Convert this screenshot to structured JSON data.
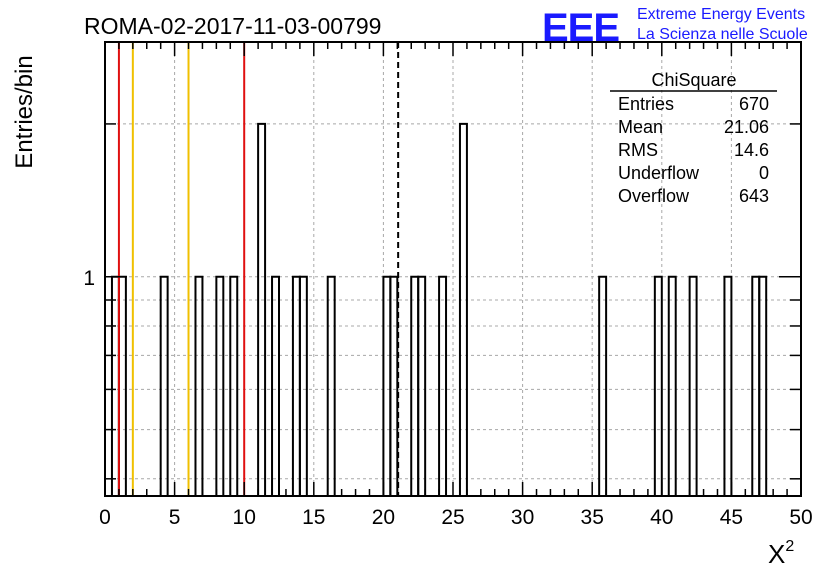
{
  "header": {
    "run_title": "ROMA-02-2017-11-03-00799"
  },
  "logo": {
    "mark": "EEE",
    "line1": "Extreme Energy Events",
    "line2": "La Scienza nelle Scuole",
    "color": "#1a1aff"
  },
  "stats_box": {
    "title": "ChiSquare",
    "rows": [
      {
        "label": "Entries",
        "value": "670"
      },
      {
        "label": "Mean",
        "value": "21.06"
      },
      {
        "label": "RMS",
        "value": "14.6"
      },
      {
        "label": "Underflow",
        "value": "0"
      },
      {
        "label": "Overflow",
        "value": "643"
      }
    ]
  },
  "chart_data": {
    "type": "histogram",
    "title": "ROMA-02-2017-11-03-00799",
    "xlabel": "X",
    "xlabel_superscript": "2",
    "ylabel": "Entries/bin",
    "xlim": [
      0,
      50
    ],
    "ylim": [
      0.37,
      2.9
    ],
    "yscale": "log",
    "grid": true,
    "bin_width": 0.5,
    "x_tick_labels": [
      "0",
      "5",
      "10",
      "15",
      "20",
      "25",
      "30",
      "35",
      "40",
      "45",
      "50"
    ],
    "x_tick_values": [
      0,
      5,
      10,
      15,
      20,
      25,
      30,
      35,
      40,
      45,
      50
    ],
    "y_tick_labels": [
      "1"
    ],
    "y_tick_values": [
      1
    ],
    "bins": [
      {
        "x": 0.5,
        "count": 1
      },
      {
        "x": 1.0,
        "count": 1
      },
      {
        "x": 4.0,
        "count": 1
      },
      {
        "x": 6.5,
        "count": 1
      },
      {
        "x": 8.0,
        "count": 1
      },
      {
        "x": 9.0,
        "count": 1
      },
      {
        "x": 11.0,
        "count": 2
      },
      {
        "x": 12.0,
        "count": 1
      },
      {
        "x": 13.5,
        "count": 1
      },
      {
        "x": 14.0,
        "count": 1
      },
      {
        "x": 16.0,
        "count": 1
      },
      {
        "x": 20.0,
        "count": 1
      },
      {
        "x": 20.5,
        "count": 1
      },
      {
        "x": 22.0,
        "count": 1
      },
      {
        "x": 22.5,
        "count": 1
      },
      {
        "x": 24.0,
        "count": 1
      },
      {
        "x": 25.5,
        "count": 2
      },
      {
        "x": 35.5,
        "count": 1
      },
      {
        "x": 39.5,
        "count": 1
      },
      {
        "x": 40.5,
        "count": 1
      },
      {
        "x": 42.0,
        "count": 1
      },
      {
        "x": 44.5,
        "count": 1
      },
      {
        "x": 46.5,
        "count": 1
      },
      {
        "x": 47.0,
        "count": 1
      }
    ],
    "reference_lines": [
      {
        "x": 1.0,
        "color": "#e01010",
        "style": "solid"
      },
      {
        "x": 2.0,
        "color": "#f0c000",
        "style": "solid"
      },
      {
        "x": 6.0,
        "color": "#f0c000",
        "style": "solid"
      },
      {
        "x": 10.0,
        "color": "#e01010",
        "style": "solid"
      },
      {
        "x": 21.06,
        "color": "#000000",
        "style": "dashed"
      }
    ]
  }
}
